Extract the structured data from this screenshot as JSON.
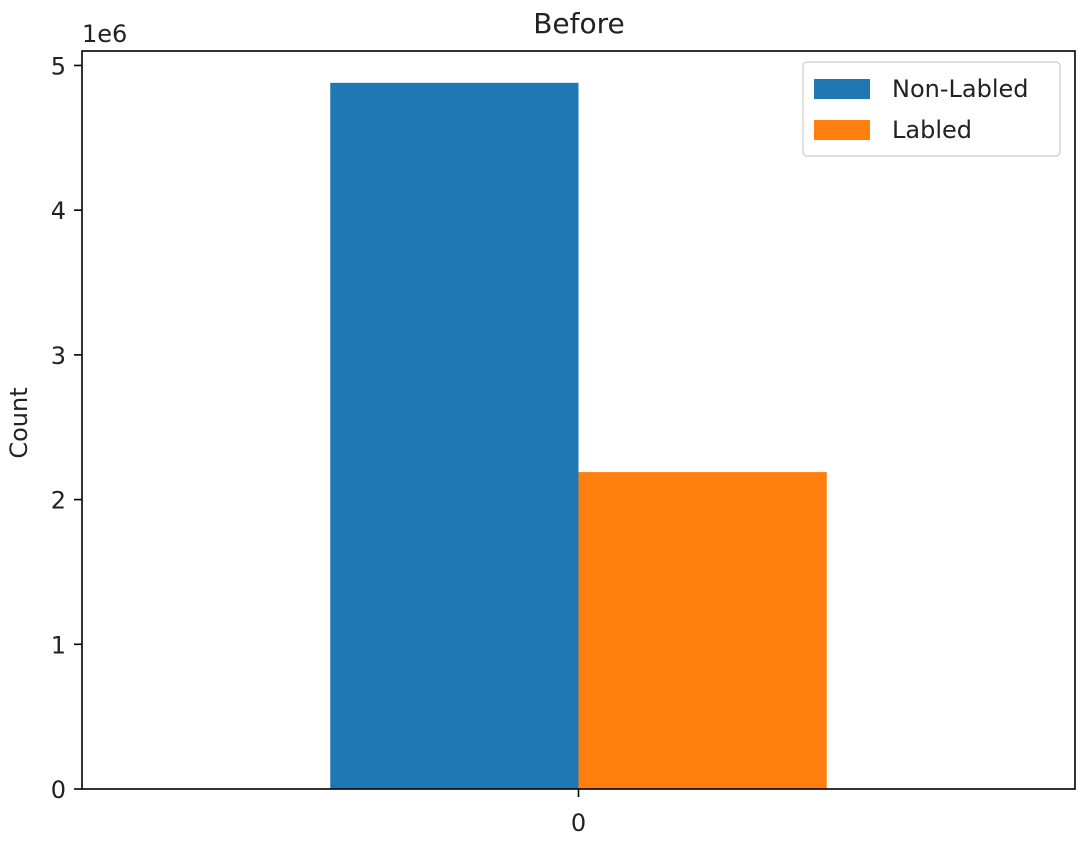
{
  "chart_data": {
    "type": "bar",
    "title": "Before",
    "xlabel": "",
    "ylabel": "Count",
    "categories": [
      "0"
    ],
    "series": [
      {
        "name": "Non-Labled",
        "values": [
          4880000
        ],
        "color": "#1f77b4"
      },
      {
        "name": "Labled",
        "values": [
          2190000
        ],
        "color": "#ff7f0e"
      }
    ],
    "ylim": [
      0,
      5100000
    ],
    "yticks": [
      0,
      1,
      2,
      3,
      4,
      5
    ],
    "y_multiplier_label": "1e6",
    "grid": false,
    "legend_position": "top-right"
  }
}
